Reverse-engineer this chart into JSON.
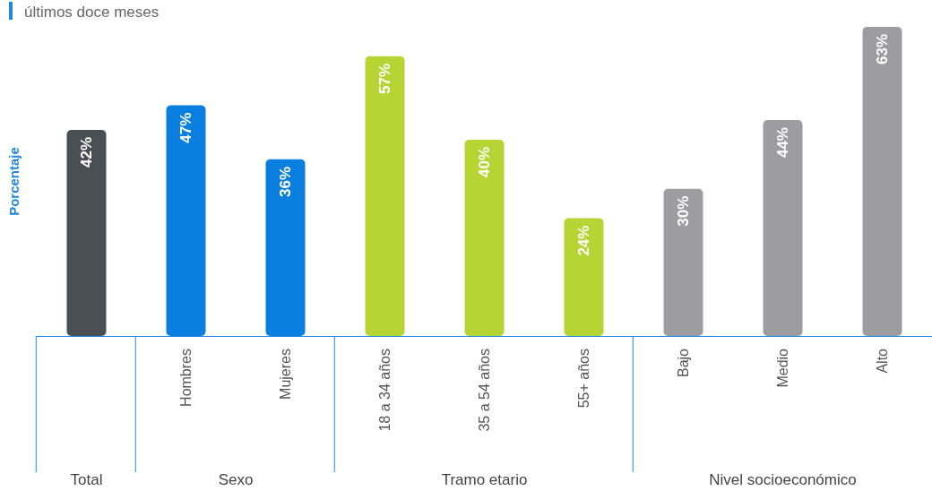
{
  "chart_data": {
    "type": "bar",
    "title": "últimos doce meses",
    "ylabel": "Porcentaje",
    "categories": [
      null,
      "Hombres",
      "Mujeres",
      "18 a 34 años",
      "35 a 54 años",
      "55+ años",
      "Bajo",
      "Medio",
      "Alto"
    ],
    "values": [
      42,
      47,
      36,
      57,
      40,
      24,
      30,
      44,
      63
    ],
    "colors": [
      "#4a4f54",
      "#0a7fe0",
      "#0a7fe0",
      "#b6d433",
      "#b6d433",
      "#b6d433",
      "#9d9d9f",
      "#9d9d9f",
      "#9d9d9f"
    ],
    "value_labels": [
      "42%",
      "47%",
      "36%",
      "57%",
      "40%",
      "24%",
      "30%",
      "44%",
      "63%"
    ],
    "annotations": [
      "Total",
      "Sexo",
      "Tramo etario",
      "Nivel socioeconómico"
    ]
  }
}
